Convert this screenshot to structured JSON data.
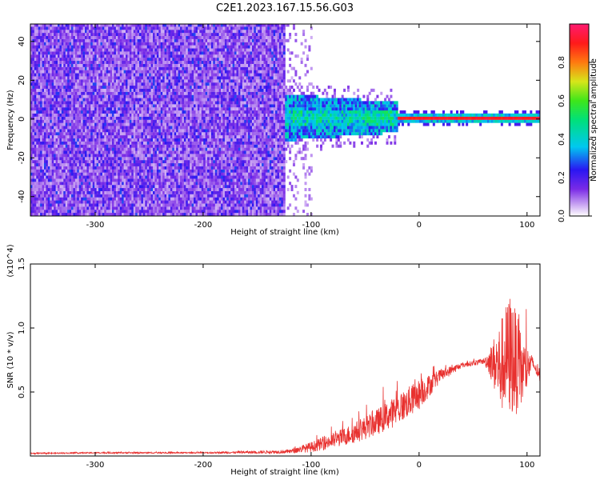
{
  "figure": {
    "title": "C2E1.2023.167.15.56.G03"
  },
  "chart_data": [
    {
      "type": "heatmap",
      "title": "C2E1.2023.167.15.56.G03",
      "xlabel": "Height of straight line (km)",
      "ylabel": "Frequency (Hz)",
      "xlim": [
        -360,
        112
      ],
      "ylim": [
        -50,
        49
      ],
      "xticks": [
        -300,
        -200,
        -100,
        0,
        100
      ],
      "yticks": [
        -40,
        -20,
        0,
        20,
        40
      ],
      "colorbar": {
        "label": "Normalized spectral amplitude",
        "range": [
          0,
          1
        ],
        "ticks": [
          "0.0",
          "0.2",
          "0.4",
          "0.6",
          "0.8"
        ],
        "colormap": "rainbow (white-purple-blue-cyan-green-yellow-red-magenta)"
      },
      "regions": [
        {
          "x_range": [
            -360,
            -125
          ],
          "freq_range": [
            -50,
            49
          ],
          "amplitude": "0.1-0.3 broadband noise"
        },
        {
          "x_range": [
            -125,
            -20
          ],
          "freq_range": [
            -12,
            10
          ],
          "amplitude": "0.3-0.5 band"
        },
        {
          "x_range": [
            -20,
            112
          ],
          "freq_range": [
            -2,
            2
          ],
          "amplitude": "0.85-1.0 narrow line at 0 Hz"
        }
      ],
      "grid": false
    },
    {
      "type": "line",
      "xlabel": "Height of straight line (km)",
      "ylabel": "SNR (10 * v/v)",
      "y_multiplier": "(x10^4)",
      "xlim": [
        -360,
        112
      ],
      "ylim": [
        0,
        1.5
      ],
      "xticks": [
        -300,
        -200,
        -100,
        0,
        100
      ],
      "yticks": [
        "0.5",
        "1.0",
        "1.5"
      ],
      "series": [
        {
          "color": "#e8312f",
          "x": [
            -360,
            -300,
            -250,
            -200,
            -150,
            -120,
            -100,
            -80,
            -60,
            -40,
            -20,
            0,
            20,
            40,
            60,
            65,
            75,
            85,
            95,
            105,
            112
          ],
          "y": [
            0.02,
            0.025,
            0.025,
            0.025,
            0.03,
            0.035,
            0.07,
            0.12,
            0.18,
            0.26,
            0.36,
            0.48,
            0.63,
            0.71,
            0.74,
            0.74,
            0.7,
            0.8,
            0.65,
            0.73,
            0.61
          ],
          "spread": [
            0.005,
            0.005,
            0.005,
            0.005,
            0.01,
            0.015,
            0.04,
            0.06,
            0.08,
            0.1,
            0.12,
            0.12,
            0.05,
            0.02,
            0.02,
            0.1,
            0.35,
            0.5,
            0.3,
            0.05,
            0.03
          ]
        }
      ],
      "grid": false
    }
  ]
}
